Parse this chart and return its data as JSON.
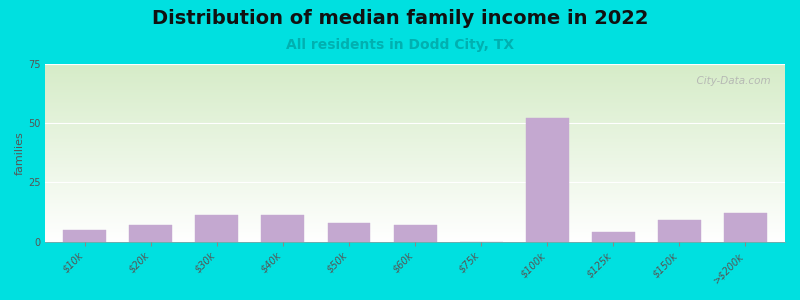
{
  "title": "Distribution of median family income in 2022",
  "subtitle": "All residents in Dodd City, TX",
  "ylabel": "families",
  "categories": [
    "$10k",
    "$20k",
    "$30k",
    "$40k",
    "$50k",
    "$60k",
    "$75k",
    "$100k",
    "$125k",
    "$150k",
    ">$200k"
  ],
  "values": [
    5,
    7,
    11,
    11,
    8,
    7,
    0,
    52,
    4,
    9,
    12
  ],
  "bar_color": "#c4a8d0",
  "background_outer": "#00e0e0",
  "background_top": "#d6ecc8",
  "background_bottom": "#ffffff",
  "ylim": [
    0,
    75
  ],
  "yticks": [
    0,
    25,
    50,
    75
  ],
  "title_fontsize": 14,
  "subtitle_fontsize": 10,
  "subtitle_color": "#00b0b0",
  "ylabel_fontsize": 8,
  "tick_fontsize": 7,
  "watermark": "  City-Data.com"
}
